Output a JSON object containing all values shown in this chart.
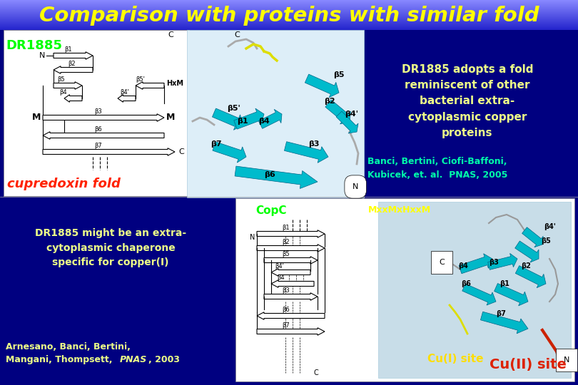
{
  "title": "Comparison with proteins with similar fold",
  "title_color": "#FFFF00",
  "main_bg": "#000080",
  "dr1885_label": "DR1885",
  "dr1885_label_color": "#00FF00",
  "dr1885_text": "DR1885 adopts a fold\nreminiscent of other\nbacterial extra-\ncytoplasmic copper\nproteins",
  "dr1885_text_color": "#EEFF88",
  "banci_text": "Banci, Bertini, Ciofi-Baffoni,\nKubicek, et. al.  PNAS, 2005",
  "banci_text_color": "#00FFAA",
  "cupredoxin_label": "cupredoxin fold",
  "cupredoxin_color": "#FF2200",
  "copc_label": "CopC",
  "copc_color": "#00FF00",
  "mxx_label": "MxxMxHxxM",
  "mxx_color": "#FFFF00",
  "chaperone_text": "DR1885 might be an extra-\ncytoplasmic chaperone\nspecific for copper(I)",
  "chaperone_color": "#EEFF88",
  "arnesano_line1": "Arnesano, Banci, Bertini,",
  "arnesano_line2": "Mangani, Thompsett, ",
  "arnesano_pnas": "PNAS",
  "arnesano_year": ", 2003",
  "arnesano_color": "#EEFF88",
  "cui_text": "Cu(I) site",
  "cui_color": "#FFDD00",
  "cuii_text": "Cu(II) site",
  "cuii_color": "#DD2200",
  "topo_bg": "#FFFFFF",
  "struct_bg": "#C8E8F0",
  "struct2_bg": "#C8E8F0",
  "bottom_panel_bg": "#FFFFFF"
}
